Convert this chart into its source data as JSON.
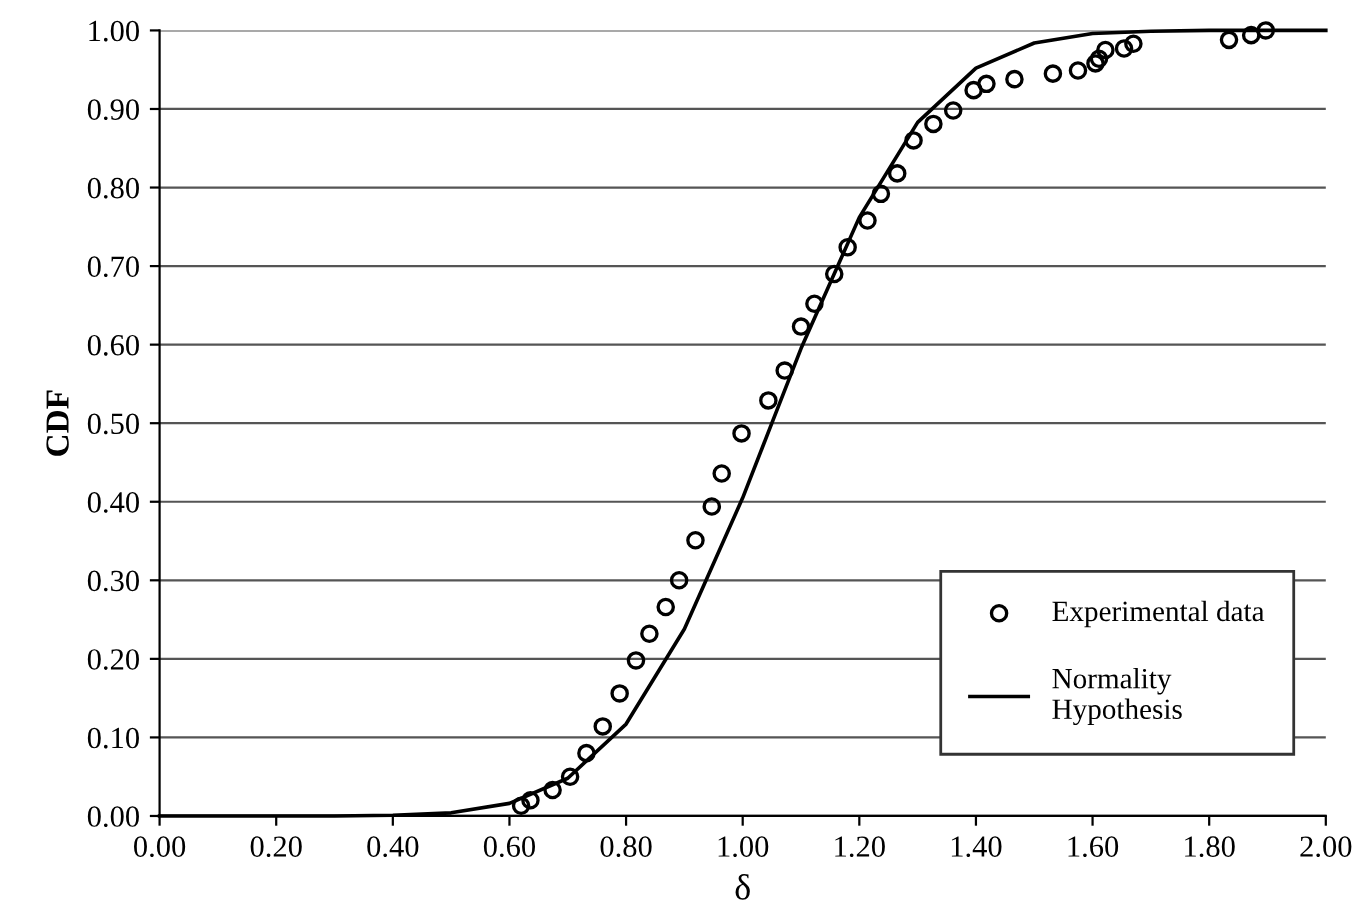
{
  "chart_data": {
    "type": "scatter",
    "xlabel": "δ",
    "ylabel": "CDF",
    "xlim": [
      0,
      2
    ],
    "ylim": [
      0,
      1
    ],
    "xticks": [
      {
        "value": 0,
        "label": "0.00"
      },
      {
        "value": 0.2,
        "label": "0.20"
      },
      {
        "value": 0.4,
        "label": "0.40"
      },
      {
        "value": 0.6,
        "label": "0.60"
      },
      {
        "value": 0.8,
        "label": "0.80"
      },
      {
        "value": 1.0,
        "label": "1.00"
      },
      {
        "value": 1.2,
        "label": "1.20"
      },
      {
        "value": 1.4,
        "label": "1.40"
      },
      {
        "value": 1.6,
        "label": "1.60"
      },
      {
        "value": 1.8,
        "label": "1.80"
      },
      {
        "value": 2.0,
        "label": "2.00"
      }
    ],
    "yticks": [
      {
        "value": 0,
        "label": "0.00"
      },
      {
        "value": 0.1,
        "label": "0.10"
      },
      {
        "value": 0.2,
        "label": "0.20"
      },
      {
        "value": 0.3,
        "label": "0.30"
      },
      {
        "value": 0.4,
        "label": "0.40"
      },
      {
        "value": 0.5,
        "label": "0.50"
      },
      {
        "value": 0.6,
        "label": "0.60"
      },
      {
        "value": 0.7,
        "label": "0.70"
      },
      {
        "value": 0.8,
        "label": "0.80"
      },
      {
        "value": 0.9,
        "label": "0.90"
      },
      {
        "value": 1.0,
        "label": "1.00"
      }
    ],
    "grid": "y",
    "legend": "bottom right",
    "series": [
      {
        "name": "Experimental data",
        "marker": "circle",
        "color": "#000000",
        "x": [
          0.62,
          0.636,
          0.674,
          0.704,
          0.732,
          0.76,
          0.789,
          0.817,
          0.84,
          0.868,
          0.891,
          0.919,
          0.947,
          0.964,
          0.998,
          1.044,
          1.072,
          1.1,
          1.123,
          1.157,
          1.18,
          1.214,
          1.237,
          1.265,
          1.293,
          1.327,
          1.361,
          1.396,
          1.418,
          1.466,
          1.532,
          1.575,
          1.605,
          1.611,
          1.622,
          1.654,
          1.67,
          1.834,
          1.872,
          1.897
        ],
        "values": [
          0.013,
          0.02,
          0.033,
          0.05,
          0.08,
          0.114,
          0.156,
          0.198,
          0.232,
          0.266,
          0.3,
          0.351,
          0.394,
          0.436,
          0.487,
          0.529,
          0.567,
          0.623,
          0.652,
          0.69,
          0.724,
          0.758,
          0.792,
          0.818,
          0.86,
          0.881,
          0.898,
          0.924,
          0.932,
          0.938,
          0.945,
          0.949,
          0.958,
          0.964,
          0.975,
          0.977,
          0.983,
          0.988,
          0.994,
          1.0
        ]
      },
      {
        "name": "Normality\nHypothesis",
        "type": "line",
        "marker": "none",
        "line_style": "solid",
        "color": "#000000",
        "x": [
          0,
          0.2,
          0.3,
          0.4,
          0.5,
          0.6,
          0.7,
          0.8,
          0.9,
          1.0,
          1.05,
          1.1,
          1.2,
          1.3,
          1.4,
          1.5,
          1.6,
          1.7,
          1.8,
          1.9,
          2.0
        ],
        "values": [
          0,
          0,
          0,
          0.001,
          0.004,
          0.016,
          0.048,
          0.117,
          0.238,
          0.405,
          0.5,
          0.595,
          0.762,
          0.883,
          0.952,
          0.984,
          0.996,
          0.999,
          1.0,
          1.0,
          1.0
        ]
      }
    ]
  }
}
